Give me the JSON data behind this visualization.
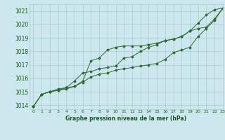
{
  "xlabel": "Graphe pression niveau de la mer (hPa)",
  "background_color": "#cce8ee",
  "grid_color": "#aacccc",
  "line_color": "#2d6a2d",
  "text_color": "#1a5c1a",
  "xlim": [
    -0.5,
    23
  ],
  "ylim": [
    1013.7,
    1021.5
  ],
  "yticks": [
    1014,
    1015,
    1016,
    1017,
    1018,
    1019,
    1020,
    1021
  ],
  "xticks": [
    0,
    1,
    2,
    3,
    4,
    5,
    6,
    7,
    8,
    9,
    10,
    11,
    12,
    13,
    14,
    15,
    16,
    17,
    18,
    19,
    20,
    21,
    22,
    23
  ],
  "series1": [
    1013.9,
    1014.8,
    1015.0,
    1015.1,
    1015.2,
    1015.4,
    1015.7,
    1016.1,
    1016.3,
    1016.4,
    1016.6,
    1016.7,
    1016.8,
    1016.9,
    1017.0,
    1017.1,
    1017.4,
    1017.9,
    1018.1,
    1018.3,
    1019.1,
    1019.7,
    1020.3,
    1021.2
  ],
  "series2": [
    1013.9,
    1014.8,
    1015.0,
    1015.1,
    1015.3,
    1015.8,
    1016.4,
    1016.5,
    1016.7,
    1016.8,
    1016.9,
    1017.5,
    1017.6,
    1018.0,
    1018.3,
    1018.5,
    1018.8,
    1018.9,
    1019.1,
    1019.5,
    1019.7,
    1019.8,
    1020.4,
    1021.2
  ],
  "series3": [
    1013.9,
    1014.8,
    1015.0,
    1015.2,
    1015.3,
    1015.4,
    1015.8,
    1017.3,
    1017.5,
    1018.1,
    1018.3,
    1018.4,
    1018.4,
    1018.4,
    1018.5,
    1018.6,
    1018.8,
    1018.9,
    1019.1,
    1019.5,
    1020.1,
    1020.7,
    1021.1,
    1021.2
  ]
}
